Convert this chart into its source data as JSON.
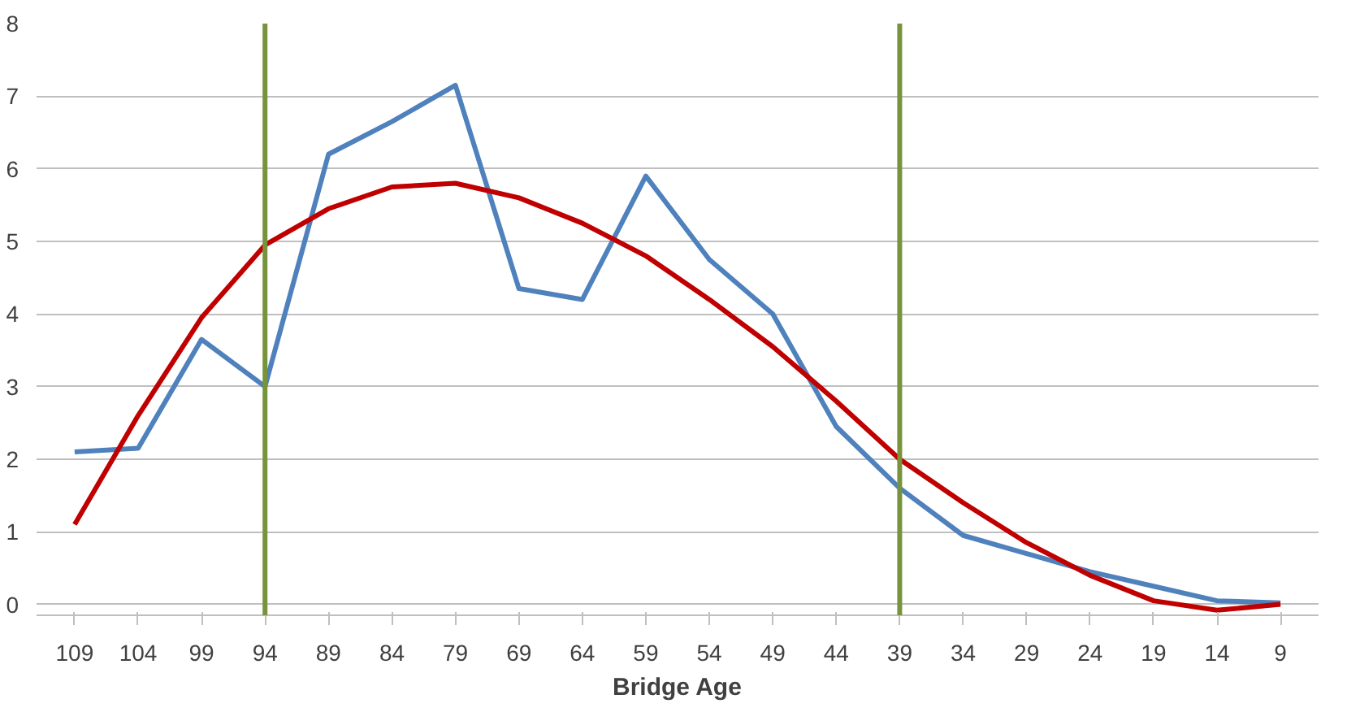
{
  "chart_data": {
    "type": "line",
    "xlabel": "Bridge Age",
    "categories": [
      "109",
      "104",
      "99",
      "94",
      "89",
      "84",
      "79",
      "69",
      "64",
      "59",
      "54",
      "49",
      "44",
      "39",
      "34",
      "29",
      "24",
      "19",
      "14",
      "9"
    ],
    "series": [
      {
        "color": "#4f81bd",
        "values": [
          2.1,
          2.15,
          3.65,
          3.0,
          6.2,
          6.65,
          7.15,
          4.35,
          4.2,
          5.9,
          4.75,
          4.0,
          2.45,
          1.6,
          0.95,
          0.7,
          0.45,
          0.25,
          0.05,
          0.02
        ]
      },
      {
        "color": "#c00000",
        "values": [
          1.1,
          2.6,
          3.95,
          4.95,
          5.45,
          5.75,
          5.8,
          5.6,
          5.25,
          4.8,
          4.2,
          3.55,
          2.8,
          2.0,
          1.4,
          0.85,
          0.4,
          0.05,
          -0.08,
          0.0
        ]
      }
    ],
    "ylim": [
      -0.15,
      8
    ],
    "yticks": [
      0,
      1,
      2,
      3,
      4,
      5,
      6,
      7,
      8
    ],
    "grid": "y",
    "marker": "none",
    "line_style": "solid",
    "ref_lines": [
      {
        "axis": "x",
        "value": "94",
        "color": "#77933c"
      },
      {
        "axis": "x",
        "value": "39",
        "color": "#77933c"
      }
    ]
  }
}
